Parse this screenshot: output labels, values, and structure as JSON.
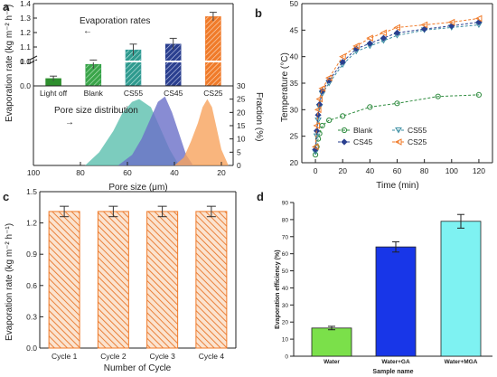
{
  "panels": [
    {
      "letter": "a"
    },
    {
      "letter": "b"
    },
    {
      "letter": "c"
    },
    {
      "letter": "d"
    }
  ],
  "chart_data": [
    {
      "id": "a_top",
      "type": "bar",
      "annotation": "Evaporation rates",
      "ylabel": "Evaporation rate (kg m⁻² h⁻¹)",
      "categories": [
        "Light off",
        "Blank",
        "CS55",
        "CS45",
        "CS25"
      ],
      "values": [
        0.03,
        0.98,
        1.08,
        1.12,
        1.31
      ],
      "errors": [
        0.01,
        0.03,
        0.04,
        0.04,
        0.03
      ],
      "ylim": [
        0.0,
        1.4
      ],
      "yticks": [
        "0.0",
        "0.1",
        "1.0",
        "1.1",
        "1.2",
        "1.3",
        "1.4"
      ],
      "axis_break": "between 0.1 and 1.0",
      "colors": [
        "#2f8f2f",
        "#2f9e44",
        "#3aa0a0",
        "#2a3f8f",
        "#f07b2a"
      ]
    },
    {
      "id": "a_bottom",
      "type": "area",
      "annotation": "Pore size distribution",
      "xlabel": "Pore size (μm)",
      "ylabel": "Fraction (%)",
      "xlim": [
        100,
        15
      ],
      "xticks": [
        100,
        80,
        60,
        40,
        20
      ],
      "ylim": [
        0,
        30
      ],
      "yticks": [
        0,
        5,
        10,
        15,
        20,
        25,
        30
      ],
      "series": [
        {
          "x": [
            78,
            72,
            66,
            62,
            58,
            55,
            50,
            46,
            42,
            38
          ],
          "values": [
            0,
            5,
            13,
            20,
            24,
            25,
            22,
            14,
            6,
            0
          ],
          "color": "#5bbfae"
        },
        {
          "x": [
            64,
            58,
            54,
            50,
            47,
            44,
            41,
            38,
            35,
            32
          ],
          "values": [
            0,
            4,
            10,
            18,
            24,
            26,
            20,
            12,
            4,
            0
          ],
          "color": "#6a6fc8"
        },
        {
          "x": [
            40,
            36,
            33,
            30,
            28,
            26,
            24,
            22,
            20,
            17
          ],
          "values": [
            0,
            3,
            9,
            16,
            22,
            25,
            22,
            14,
            6,
            0
          ],
          "color": "#f7a35c"
        }
      ]
    },
    {
      "id": "b",
      "type": "line",
      "xlabel": "Time (min)",
      "ylabel": "Temperature (°C)",
      "xlim": [
        -10,
        130
      ],
      "xticks": [
        0,
        20,
        40,
        60,
        80,
        100,
        120
      ],
      "ylim": [
        20,
        50
      ],
      "yticks": [
        20,
        25,
        30,
        35,
        40,
        45,
        50
      ],
      "legend": "center-right",
      "series": [
        {
          "name": "Blank",
          "x": [
            0,
            1,
            2,
            3,
            5,
            10,
            20,
            40,
            60,
            90,
            120
          ],
          "values": [
            21.5,
            23,
            24.5,
            25.5,
            27,
            28,
            28.8,
            30.5,
            31.2,
            32.5,
            32.8
          ],
          "color": "#2e8b3e"
        },
        {
          "name": "CS55",
          "x": [
            0,
            1,
            2,
            3,
            5,
            10,
            20,
            30,
            40,
            50,
            60,
            80,
            100,
            120
          ],
          "values": [
            22,
            25,
            28,
            30.5,
            33,
            35,
            38.5,
            41,
            42,
            43,
            44,
            45,
            45.5,
            46
          ],
          "color": "#3d8fa3"
        },
        {
          "name": "CS45",
          "x": [
            0,
            1,
            2,
            3,
            5,
            10,
            20,
            30,
            40,
            50,
            60,
            80,
            100,
            120
          ],
          "values": [
            22.5,
            26,
            29,
            31,
            33.5,
            35.5,
            39,
            41.5,
            42.5,
            43.5,
            44.5,
            45.2,
            45.8,
            46.5
          ],
          "color": "#2a3f8f"
        },
        {
          "name": "CS25",
          "x": [
            0,
            1,
            2,
            3,
            5,
            10,
            20,
            30,
            40,
            50,
            60,
            80,
            100,
            120
          ],
          "values": [
            23,
            27,
            30,
            32,
            34,
            36,
            40,
            42,
            43.5,
            44.5,
            45.5,
            46,
            46.5,
            47.2
          ],
          "color": "#f07b2a"
        }
      ]
    },
    {
      "id": "c",
      "type": "bar",
      "xlabel": "Number of Cycle",
      "ylabel": "Evaporation rate (kg m⁻² h⁻¹)",
      "categories": [
        "Cycle 1",
        "Cycle 2",
        "Cycle 3",
        "Cycle 4"
      ],
      "values": [
        1.31,
        1.31,
        1.31,
        1.31
      ],
      "errors": [
        0.05,
        0.05,
        0.05,
        0.05
      ],
      "ylim": [
        0.0,
        1.5
      ],
      "yticks": [
        "0.0",
        "0.3",
        "0.6",
        "0.9",
        "1.2",
        "1.5"
      ],
      "color": "#f07b2a"
    },
    {
      "id": "d",
      "type": "bar",
      "xlabel": "Sample name",
      "ylabel": "Evaporation efficiency (%)",
      "categories": [
        "Water",
        "Water+GA",
        "Water+MGA"
      ],
      "values": [
        16.5,
        64,
        79
      ],
      "errors": [
        1,
        3,
        4
      ],
      "ylim": [
        0,
        90
      ],
      "yticks": [
        0,
        10,
        20,
        30,
        40,
        50,
        60,
        70,
        80,
        90
      ],
      "colors": [
        "#7be04a",
        "#1836e8",
        "#7ef2f2"
      ]
    }
  ]
}
